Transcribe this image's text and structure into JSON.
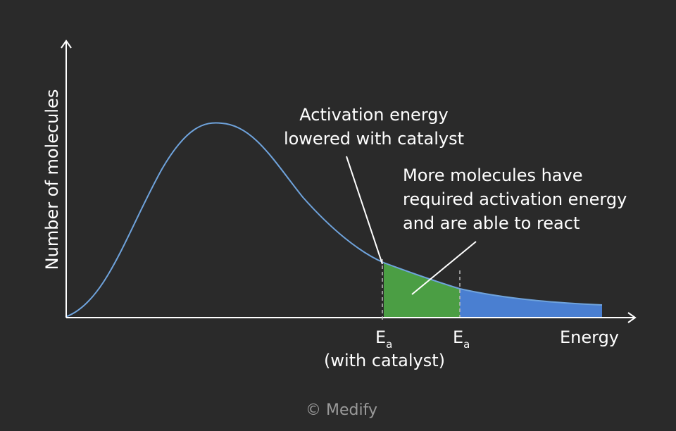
{
  "axes": {
    "y_label": "Number of molecules",
    "x_label": "Energy"
  },
  "annotations": [
    {
      "lines": [
        "Activation energy",
        "lowered with catalyst"
      ]
    },
    {
      "lines": [
        "More molecules have",
        "required activation energy",
        "and are able to react"
      ]
    }
  ],
  "markers": [
    {
      "symbol": "E",
      "subscript": "a",
      "note": "(with catalyst)"
    },
    {
      "symbol": "E",
      "subscript": "a"
    }
  ],
  "credit": "© Medify"
}
